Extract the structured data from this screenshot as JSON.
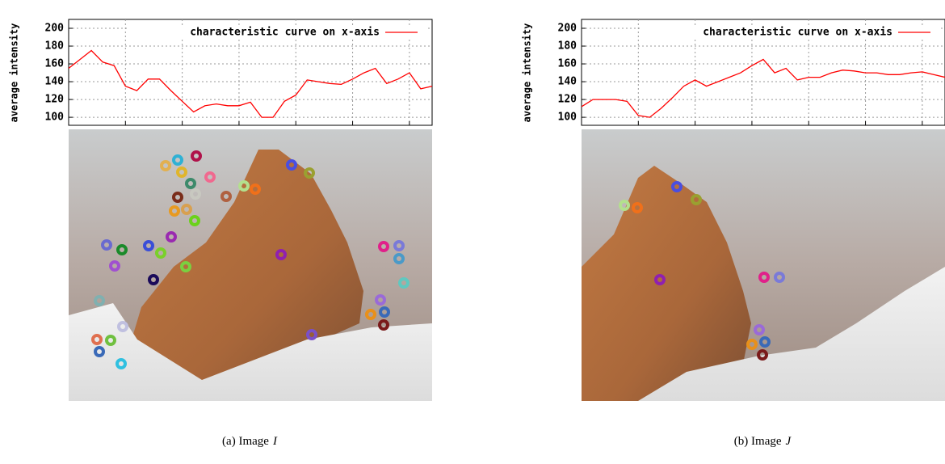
{
  "chart_data": [
    {
      "type": "line",
      "ylabel": "average intensity",
      "x": [
        0,
        10,
        20,
        30,
        40,
        50,
        60,
        70,
        80,
        90,
        100,
        110,
        120,
        130,
        140,
        150,
        160,
        170,
        180,
        190,
        200,
        210,
        220,
        230,
        240,
        250,
        260,
        270,
        280,
        290,
        300,
        310,
        320
      ],
      "series": [
        {
          "name": "characteristic curve on x-axis",
          "color": "#ff0000",
          "values": [
            155,
            165,
            175,
            162,
            158,
            135,
            130,
            143,
            143,
            130,
            118,
            106,
            113,
            115,
            113,
            113,
            117,
            100,
            100,
            118,
            125,
            142,
            140,
            138,
            137,
            143,
            150,
            155,
            138,
            143,
            150,
            132,
            135
          ]
        }
      ],
      "xlim": [
        0,
        320
      ],
      "xticks": [
        50,
        100,
        150,
        200,
        250,
        300
      ],
      "ylim": [
        91,
        210
      ],
      "yticks": [
        100,
        120,
        140,
        160,
        180,
        200
      ],
      "grid": true,
      "legend": "top",
      "caption": "(a) Image",
      "caption_symbol": "I"
    },
    {
      "type": "line",
      "ylabel": "average intensity",
      "x": [
        0,
        10,
        20,
        30,
        40,
        50,
        60,
        70,
        80,
        90,
        100,
        110,
        120,
        130,
        140,
        150,
        160,
        170,
        180,
        190,
        200,
        210,
        220,
        230,
        240,
        250,
        260,
        270,
        280,
        290,
        300,
        310,
        320
      ],
      "series": [
        {
          "name": "characteristic curve on x-axis",
          "color": "#ff0000",
          "values": [
            112,
            120,
            120,
            120,
            118,
            102,
            100,
            110,
            122,
            135,
            142,
            135,
            140,
            145,
            150,
            158,
            165,
            150,
            155,
            142,
            145,
            145,
            150,
            153,
            152,
            150,
            150,
            148,
            148,
            150,
            151,
            148,
            145
          ]
        }
      ],
      "xlim": [
        0,
        320
      ],
      "xticks": [
        50,
        100,
        150,
        200,
        250,
        300
      ],
      "ylim": [
        91,
        210
      ],
      "yticks": [
        100,
        120,
        140,
        160,
        180,
        200
      ],
      "grid": true,
      "legend": "top",
      "caption": "(b) Image",
      "caption_symbol": "J"
    }
  ]
}
